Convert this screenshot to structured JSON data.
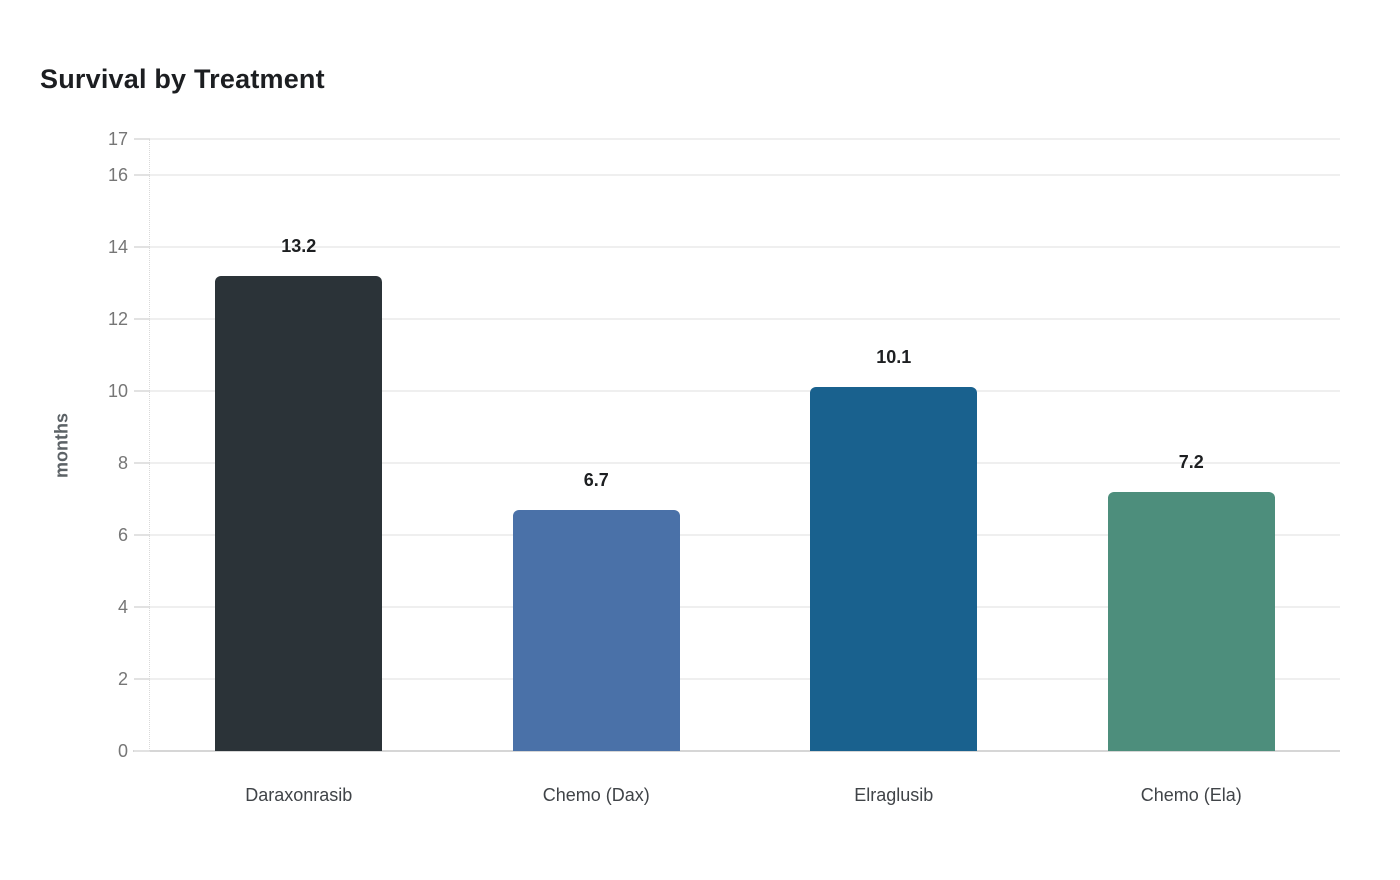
{
  "title": "Survival by Treatment",
  "chart_data": {
    "type": "bar",
    "title": "Survival by Treatment",
    "xlabel": "",
    "ylabel": "months",
    "categories": [
      "Daraxonrasib",
      "Chemo (Dax)",
      "Elraglusib",
      "Chemo (Ela)"
    ],
    "values": [
      13.2,
      6.7,
      10.1,
      7.2
    ],
    "value_labels": [
      "13.2",
      "6.7",
      "10.1",
      "7.2"
    ],
    "bar_colors": [
      "#2b3338",
      "#4a71a8",
      "#19618e",
      "#4d8e7c"
    ],
    "ylim": [
      0,
      17
    ],
    "yticks": [
      0,
      2,
      4,
      6,
      8,
      10,
      12,
      14,
      16,
      17
    ],
    "grid": true,
    "legend": false
  },
  "colors": {
    "background": "#ffffff",
    "gridline": "#efefef",
    "axis_line": "#d6d6d6",
    "tick_label": "#767676",
    "category_label": "#404448",
    "value_label": "#1d1f21",
    "title": "#1c1e21",
    "axis_title": "#5c6266"
  }
}
